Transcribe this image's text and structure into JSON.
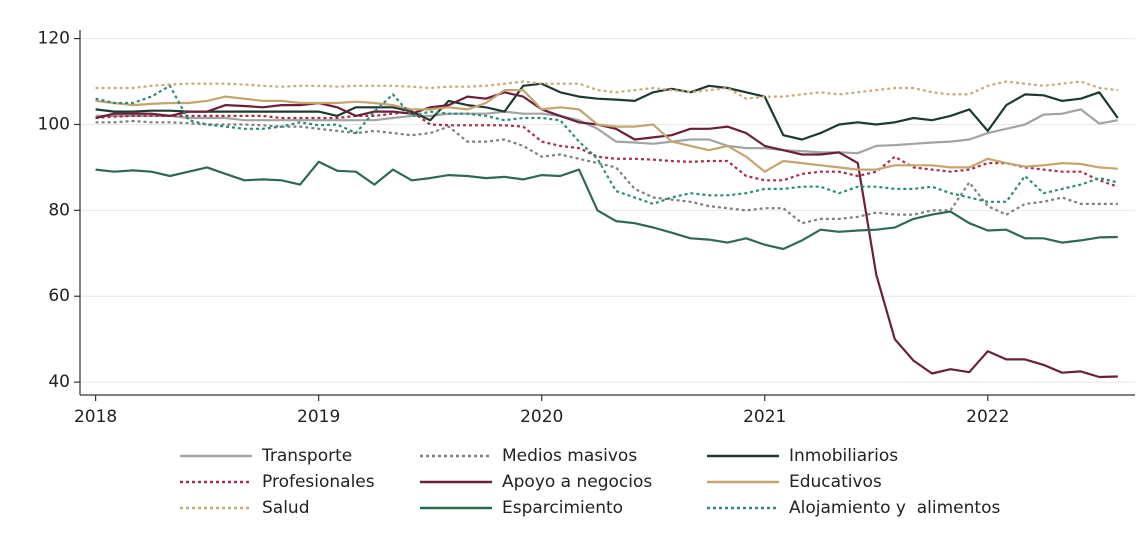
{
  "chart_data": {
    "type": "line",
    "x": [
      2018,
      2018.083,
      2018.167,
      2018.25,
      2018.333,
      2018.417,
      2018.5,
      2018.583,
      2018.667,
      2018.75,
      2018.833,
      2018.917,
      2019,
      2019.083,
      2019.167,
      2019.25,
      2019.333,
      2019.417,
      2019.5,
      2019.583,
      2019.667,
      2019.75,
      2019.833,
      2019.917,
      2020,
      2020.083,
      2020.167,
      2020.25,
      2020.333,
      2020.417,
      2020.5,
      2020.583,
      2020.667,
      2020.75,
      2020.833,
      2020.917,
      2021,
      2021.083,
      2021.167,
      2021.25,
      2021.333,
      2021.417,
      2021.5,
      2021.583,
      2021.667,
      2021.75,
      2021.833,
      2021.917,
      2022,
      2022.083,
      2022.167,
      2022.25,
      2022.333,
      2022.417,
      2022.5,
      2022.583
    ],
    "xlim": [
      2017.93,
      2022.66
    ],
    "xticks": [
      2018,
      2019,
      2020,
      2021,
      2022
    ],
    "ylim": [
      37,
      122
    ],
    "yticks": [
      40,
      60,
      80,
      100,
      120
    ],
    "grid": true,
    "series": [
      {
        "name": "Transporte",
        "color": "#a3a3a3",
        "dash": false,
        "values": [
          102,
          102,
          102,
          102,
          102,
          101.5,
          101.5,
          101.5,
          101,
          101,
          101,
          101,
          101,
          101,
          101,
          101,
          101.5,
          102,
          102,
          102.5,
          102.5,
          102.5,
          103,
          102.5,
          102.5,
          102,
          101,
          99,
          96,
          95.8,
          95.5,
          96,
          96.5,
          96.5,
          95,
          94.5,
          94.5,
          94,
          93.8,
          93.5,
          93.5,
          93.3,
          95,
          95.2,
          95.5,
          95.8,
          96,
          96.5,
          98,
          99,
          100,
          102.3,
          102.5,
          103.5,
          100.2,
          101
        ]
      },
      {
        "name": "Medios masivos",
        "color": "#7f7f7f",
        "dash": true,
        "values": [
          100.5,
          100.5,
          100.8,
          100.5,
          100.5,
          100.3,
          100,
          100,
          100,
          99.8,
          99.5,
          99.5,
          99,
          98.5,
          98,
          98.5,
          98,
          97.5,
          98,
          99.5,
          96,
          96,
          96.5,
          95,
          92.5,
          93,
          92,
          91,
          90,
          85,
          83,
          82.5,
          82,
          81,
          80.5,
          80,
          80.5,
          80.5,
          77,
          78,
          78,
          78.5,
          79.5,
          79,
          79,
          80,
          80,
          86.5,
          81,
          79,
          81.5,
          82,
          83,
          81.5,
          81.5,
          81.5
        ]
      },
      {
        "name": "Inmobiliarios",
        "color": "#1e3a2f",
        "dash": false,
        "values": [
          103.5,
          103,
          103,
          103.2,
          103.2,
          103,
          103,
          103,
          103,
          103,
          103,
          103,
          103,
          102,
          104,
          104,
          104,
          103,
          101,
          105.5,
          104.5,
          104,
          103,
          109,
          109.5,
          107.5,
          106.5,
          106,
          105.8,
          105.5,
          107.5,
          108.3,
          107.5,
          109,
          108.5,
          107.5,
          106.5,
          97.5,
          96.5,
          98,
          100,
          100.5,
          100,
          100.5,
          101.5,
          101,
          102,
          103.5,
          98.5,
          104.5,
          107,
          106.8,
          105.5,
          106,
          107.5,
          101.5
        ]
      },
      {
        "name": "Profesionales",
        "color": "#a5304a",
        "dash": true,
        "values": [
          101.5,
          101.8,
          102,
          102,
          102,
          102,
          102,
          102,
          102,
          102,
          101.5,
          101.5,
          101.5,
          101.5,
          102,
          102,
          102.5,
          103,
          100,
          99.8,
          99.8,
          99.8,
          99.8,
          99.5,
          96,
          95,
          94.5,
          92.5,
          92,
          92,
          91.8,
          91.5,
          91.3,
          91.5,
          91.5,
          88,
          87,
          87,
          88.5,
          89,
          89,
          88,
          89,
          92.5,
          90,
          89.5,
          89,
          89.5,
          91,
          91,
          90,
          89.5,
          89,
          89,
          87,
          85.5
        ]
      },
      {
        "name": "Apoyo a negocios",
        "color": "#6a1f3b",
        "dash": false,
        "values": [
          101.5,
          102.5,
          102.5,
          102.5,
          102,
          103,
          103,
          104.5,
          104.3,
          104,
          104.5,
          104.5,
          105,
          104,
          102,
          103,
          103,
          102.5,
          104,
          104.5,
          106.5,
          106,
          107.5,
          106.5,
          103.5,
          102,
          100.5,
          100,
          99,
          96.5,
          97,
          97.5,
          99,
          99,
          99.5,
          98,
          95,
          94,
          93,
          93,
          93.5,
          91,
          65,
          50,
          45,
          42,
          43,
          42.3,
          47.2,
          45.3,
          45.3,
          44,
          42.2,
          42.5,
          41.2,
          41.3
        ]
      },
      {
        "name": "Educativos",
        "color": "#c5a46e",
        "dash": false,
        "values": [
          105.5,
          105,
          104.5,
          104.8,
          105,
          105,
          105.5,
          106.5,
          106,
          105.5,
          105.5,
          105,
          105,
          105,
          105.3,
          105,
          104.5,
          103.5,
          103.5,
          104,
          103.5,
          105,
          108,
          108,
          103.5,
          104,
          103.5,
          100,
          99.5,
          99.5,
          100,
          96,
          95,
          94,
          95,
          92.5,
          89,
          91.5,
          91,
          90.5,
          90,
          89.5,
          89.5,
          90.5,
          90.5,
          90.5,
          90,
          90,
          92,
          91,
          90.2,
          90.5,
          91,
          90.8,
          90,
          89.7
        ]
      },
      {
        "name": "Salud",
        "color": "#caa97a",
        "dash": true,
        "values": [
          108.5,
          108.5,
          108.5,
          109,
          109.3,
          109.5,
          109.5,
          109.5,
          109.3,
          109,
          108.8,
          109,
          109,
          108.8,
          109,
          109,
          109,
          108.8,
          108.5,
          108.8,
          108.8,
          109,
          109.5,
          110,
          109.5,
          109.5,
          109.5,
          108,
          107.5,
          108,
          108.5,
          108,
          107.5,
          108,
          108.5,
          106,
          106.5,
          106.5,
          107,
          107.5,
          107,
          107.5,
          108,
          108.5,
          108.5,
          107.5,
          107,
          107,
          109,
          110,
          109.5,
          109,
          109.5,
          110,
          108.5,
          108
        ]
      },
      {
        "name": "Esparcimiento",
        "color": "#2e6a50",
        "dash": false,
        "values": [
          89.5,
          89,
          89.3,
          89,
          88,
          89,
          90,
          88.5,
          87,
          87.2,
          87,
          86,
          91.3,
          89.2,
          89,
          86,
          89.5,
          87,
          87.5,
          88.2,
          88,
          87.5,
          87.8,
          87.2,
          88.2,
          88,
          89.5,
          80,
          77.5,
          77,
          76,
          74.8,
          73.5,
          73.2,
          72.5,
          73.5,
          72,
          71,
          73,
          75.5,
          75,
          75.3,
          75.5,
          76,
          78,
          79,
          79.7,
          77,
          75.3,
          75.5,
          73.5,
          73.5,
          72.5,
          73,
          73.7,
          73.8
        ]
      },
      {
        "name": "Alojamiento y  alimentos",
        "color": "#2a8b79",
        "dash": true,
        "values": [
          106,
          105,
          105,
          106.5,
          109,
          101,
          100,
          99.5,
          99,
          99,
          99.5,
          100.5,
          99.8,
          100,
          98,
          103,
          107,
          102,
          103,
          102.5,
          102.5,
          102,
          101,
          101.5,
          101.5,
          101,
          96,
          92,
          84.5,
          83,
          81.5,
          83,
          84,
          83.5,
          83.5,
          84,
          85,
          85,
          85.5,
          85.5,
          84,
          85.5,
          85.5,
          85,
          85,
          85.5,
          84,
          83,
          82,
          82,
          88,
          84,
          85,
          86,
          87.5,
          86.5
        ]
      }
    ]
  }
}
